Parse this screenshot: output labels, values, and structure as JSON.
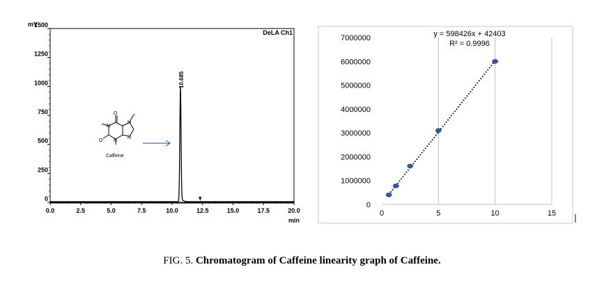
{
  "chart_data": [
    {
      "type": "line",
      "title": "",
      "corner_label": "DeLA Ch1",
      "ylabel": "mV",
      "xlabel": "min",
      "xlim": [
        0,
        20
      ],
      "ylim": [
        0,
        1500
      ],
      "xticks": [
        "0.0",
        "2.5",
        "5.0",
        "7.5",
        "10.0",
        "12.5",
        "15.0",
        "17.5",
        "20.0"
      ],
      "yticks": [
        "0",
        "250",
        "500",
        "750",
        "1000",
        "1250",
        "1500"
      ],
      "peak_label": "10.685",
      "peaks": [
        {
          "x": 10.685,
          "y": 960
        }
      ],
      "marker_x": 12.3,
      "structure_label": "Caffeine",
      "line_color": "#000000"
    },
    {
      "type": "scatter",
      "title": "",
      "xlim": [
        0,
        15
      ],
      "ylim": [
        0,
        7000000
      ],
      "xticks": [
        "0",
        "5",
        "10",
        "15"
      ],
      "yticks": [
        "0",
        "1000000",
        "2000000",
        "3000000",
        "4000000",
        "5000000",
        "6000000",
        "7000000"
      ],
      "x": [
        0.625,
        1.25,
        2.5,
        5,
        10
      ],
      "y": [
        400000,
        780000,
        1610000,
        3100000,
        6000000
      ],
      "trendline": {
        "slope": 598426,
        "intercept": 42403
      },
      "equation": "y = 598426x + 42403",
      "r_squared": "R² = 0.9996",
      "point_color": "#2e5aa8",
      "grid": "vertical"
    }
  ],
  "caption": {
    "prefix": "FIG. 5. ",
    "bold": "Chromatogram of Caffeine linearity graph of Caffeine."
  }
}
